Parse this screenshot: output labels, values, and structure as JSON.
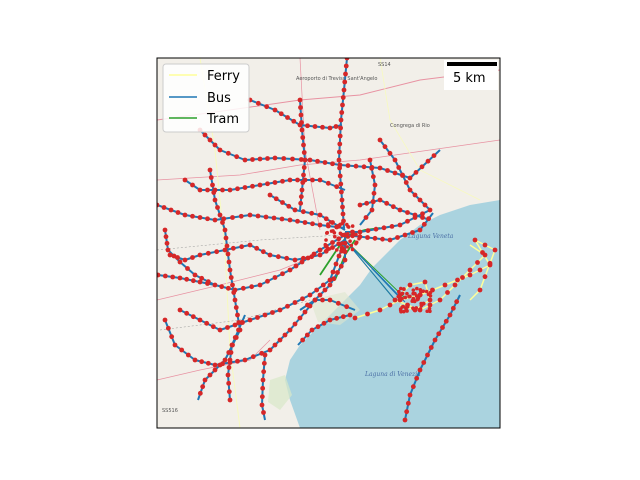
{
  "legend": {
    "items": [
      {
        "label": "Ferry",
        "color": "#ffff99"
      },
      {
        "label": "Bus",
        "color": "#1f77b4"
      },
      {
        "label": "Tram",
        "color": "#2ca02c"
      }
    ]
  },
  "scale_bar": {
    "label": "5 km"
  },
  "colors": {
    "stop_marker": "#d62728",
    "land": "#f2efe9",
    "water": "#aad3df",
    "road_major": "#e892a2",
    "road_minor": "#f7fabf"
  },
  "basemap": {
    "labels": [
      "Aeroporto di Treviso Sant'Angelo",
      "Congrega di Rio",
      "Laguna di Venezia",
      "Laguna Veneta",
      "SS516",
      "SS14"
    ]
  }
}
